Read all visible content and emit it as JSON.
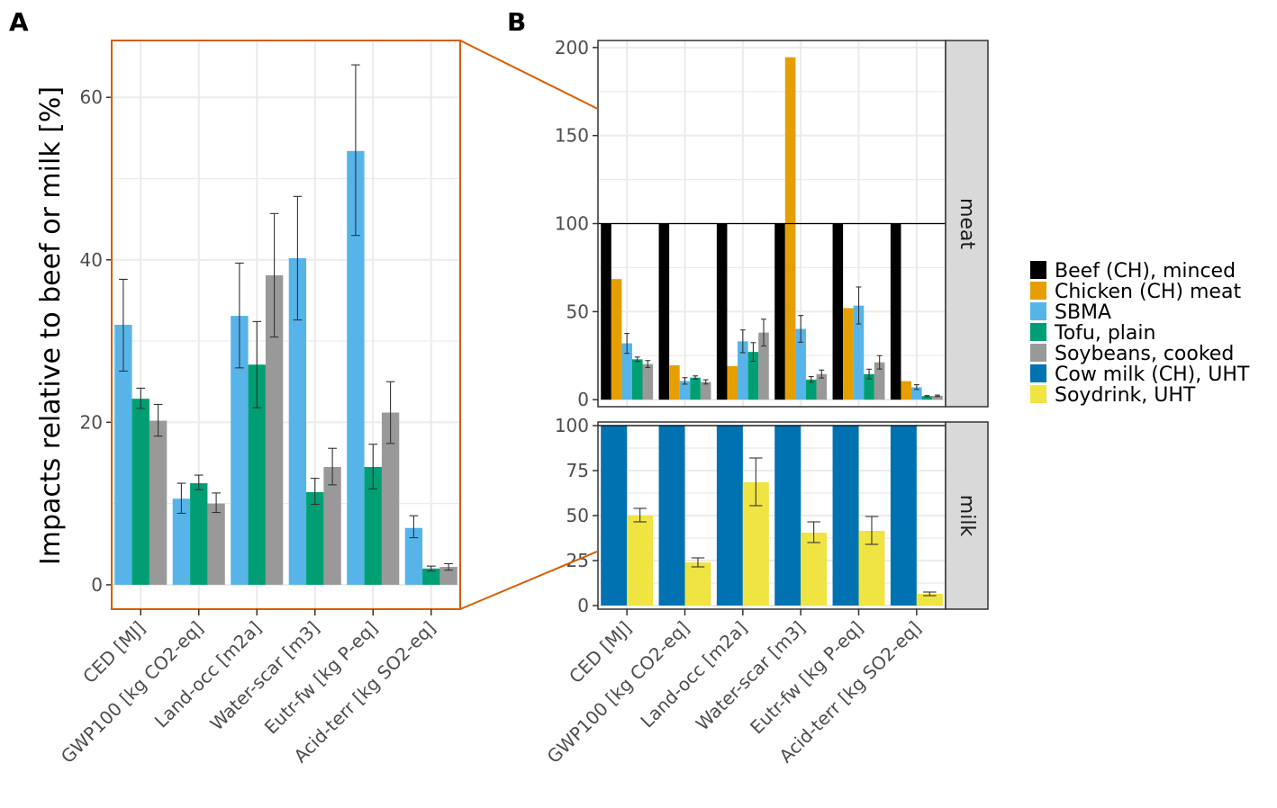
{
  "panel_a_letter": "A",
  "panel_b_letter": "B",
  "chart_data": [
    {
      "type": "bar",
      "panel": "A",
      "ylabel": "Impacts relative to beef or milk [%]",
      "ylim": [
        -3,
        67
      ],
      "yticks": [
        0,
        20,
        40,
        60
      ],
      "categories": [
        "CED [MJ]",
        "GWP100 [kg CO2-eq]",
        "Land-occ [m2a]",
        "Water-scar [m3]",
        "Eutr-fw [kg P-eq]",
        "Acid-terr [kg SO2-eq]"
      ],
      "series": [
        {
          "name": "SBMA",
          "color": "#56B4E9",
          "values": [
            32,
            10.6,
            33.1,
            40.2,
            53.4,
            7.0
          ],
          "err_low": [
            26.3,
            8.8,
            26.7,
            32.6,
            43.0,
            5.8
          ],
          "err_high": [
            37.6,
            12.5,
            39.6,
            47.8,
            64.0,
            8.5
          ]
        },
        {
          "name": "Tofu, plain",
          "color": "#009E73",
          "values": [
            22.9,
            12.5,
            27.1,
            11.4,
            14.5,
            2.0
          ],
          "err_low": [
            21.7,
            11.7,
            21.8,
            9.9,
            11.8,
            1.7
          ],
          "err_high": [
            24.2,
            13.5,
            32.4,
            13.1,
            17.3,
            2.3
          ]
        },
        {
          "name": "Soybeans, cooked",
          "color": "#999999",
          "values": [
            20.2,
            10.0,
            38.1,
            14.5,
            21.2,
            2.2
          ],
          "err_low": [
            18.3,
            8.9,
            30.5,
            12.3,
            17.4,
            1.8
          ],
          "err_high": [
            22.2,
            11.3,
            45.7,
            16.8,
            25.0,
            2.6
          ]
        }
      ]
    },
    {
      "type": "bar",
      "panel": "B",
      "facet": "meat",
      "ylim": [
        -4,
        204
      ],
      "yticks": [
        0,
        50,
        100,
        150,
        200
      ],
      "reference_line": 100,
      "categories": [
        "CED [MJ]",
        "GWP100 [kg CO2-eq]",
        "Land-occ [m2a]",
        "Water-scar [m3]",
        "Eutr-fw [kg P-eq]",
        "Acid-terr [kg SO2-eq]"
      ],
      "series": [
        {
          "name": "Beef (CH), minced",
          "color": "#000000",
          "values": [
            100,
            100,
            100,
            100,
            100,
            100
          ]
        },
        {
          "name": "Chicken (CH) meat",
          "color": "#E69F00",
          "values": [
            68.5,
            19.5,
            19.0,
            194.5,
            52.0,
            10.5
          ]
        },
        {
          "name": "SBMA",
          "color": "#56B4E9",
          "values": [
            32,
            10.6,
            33.1,
            40.2,
            53.4,
            7.0
          ],
          "err_low": [
            26.3,
            8.8,
            26.7,
            32.6,
            43.0,
            5.8
          ],
          "err_high": [
            37.6,
            12.5,
            39.6,
            47.8,
            64.0,
            8.5
          ]
        },
        {
          "name": "Tofu, plain",
          "color": "#009E73",
          "values": [
            22.9,
            12.5,
            27.1,
            11.4,
            14.5,
            2.0
          ],
          "err_low": [
            21.7,
            11.7,
            21.8,
            9.9,
            11.8,
            1.7
          ],
          "err_high": [
            24.2,
            13.5,
            32.4,
            13.1,
            17.3,
            2.3
          ]
        },
        {
          "name": "Soybeans, cooked",
          "color": "#999999",
          "values": [
            20.2,
            10.0,
            38.1,
            14.5,
            21.2,
            2.2
          ],
          "err_low": [
            18.3,
            8.9,
            30.5,
            12.3,
            17.4,
            1.8
          ],
          "err_high": [
            22.2,
            11.3,
            45.7,
            16.8,
            25.0,
            2.6
          ]
        }
      ]
    },
    {
      "type": "bar",
      "panel": "B",
      "facet": "milk",
      "ylim": [
        -2,
        102
      ],
      "yticks": [
        0,
        25,
        50,
        75,
        100
      ],
      "reference_line": 100,
      "categories": [
        "CED [MJ]",
        "GWP100 [kg CO2-eq]",
        "Land-occ [m2a]",
        "Water-scar [m3]",
        "Eutr-fw [kg P-eq]",
        "Acid-terr [kg SO2-eq]"
      ],
      "series": [
        {
          "name": "Cow milk (CH), UHT",
          "color": "#0072B2",
          "values": [
            100,
            100,
            100,
            100,
            100,
            100
          ]
        },
        {
          "name": "Soydrink, UHT",
          "color": "#F0E442",
          "values": [
            50,
            24,
            68.5,
            40.5,
            41.5,
            6.5
          ],
          "err_low": [
            46.5,
            21.5,
            55.5,
            35.0,
            34.0,
            5.5
          ],
          "err_high": [
            54.0,
            26.5,
            82.0,
            46.5,
            49.5,
            7.5
          ]
        }
      ]
    }
  ],
  "legend": [
    {
      "label": "Beef (CH), minced",
      "color": "#000000"
    },
    {
      "label": "Chicken (CH) meat",
      "color": "#E69F00"
    },
    {
      "label": "SBMA",
      "color": "#56B4E9"
    },
    {
      "label": "Tofu, plain",
      "color": "#009E73"
    },
    {
      "label": "Soybeans, cooked",
      "color": "#999999"
    },
    {
      "label": "Cow milk (CH), UHT",
      "color": "#0072B2"
    },
    {
      "label": "Soydrink, UHT",
      "color": "#F0E442"
    }
  ],
  "colors": {
    "zoom_frame": "#D55E00",
    "grid": "#ebebeb",
    "strip": "#d9d9d9",
    "errorbar": "#333333"
  }
}
